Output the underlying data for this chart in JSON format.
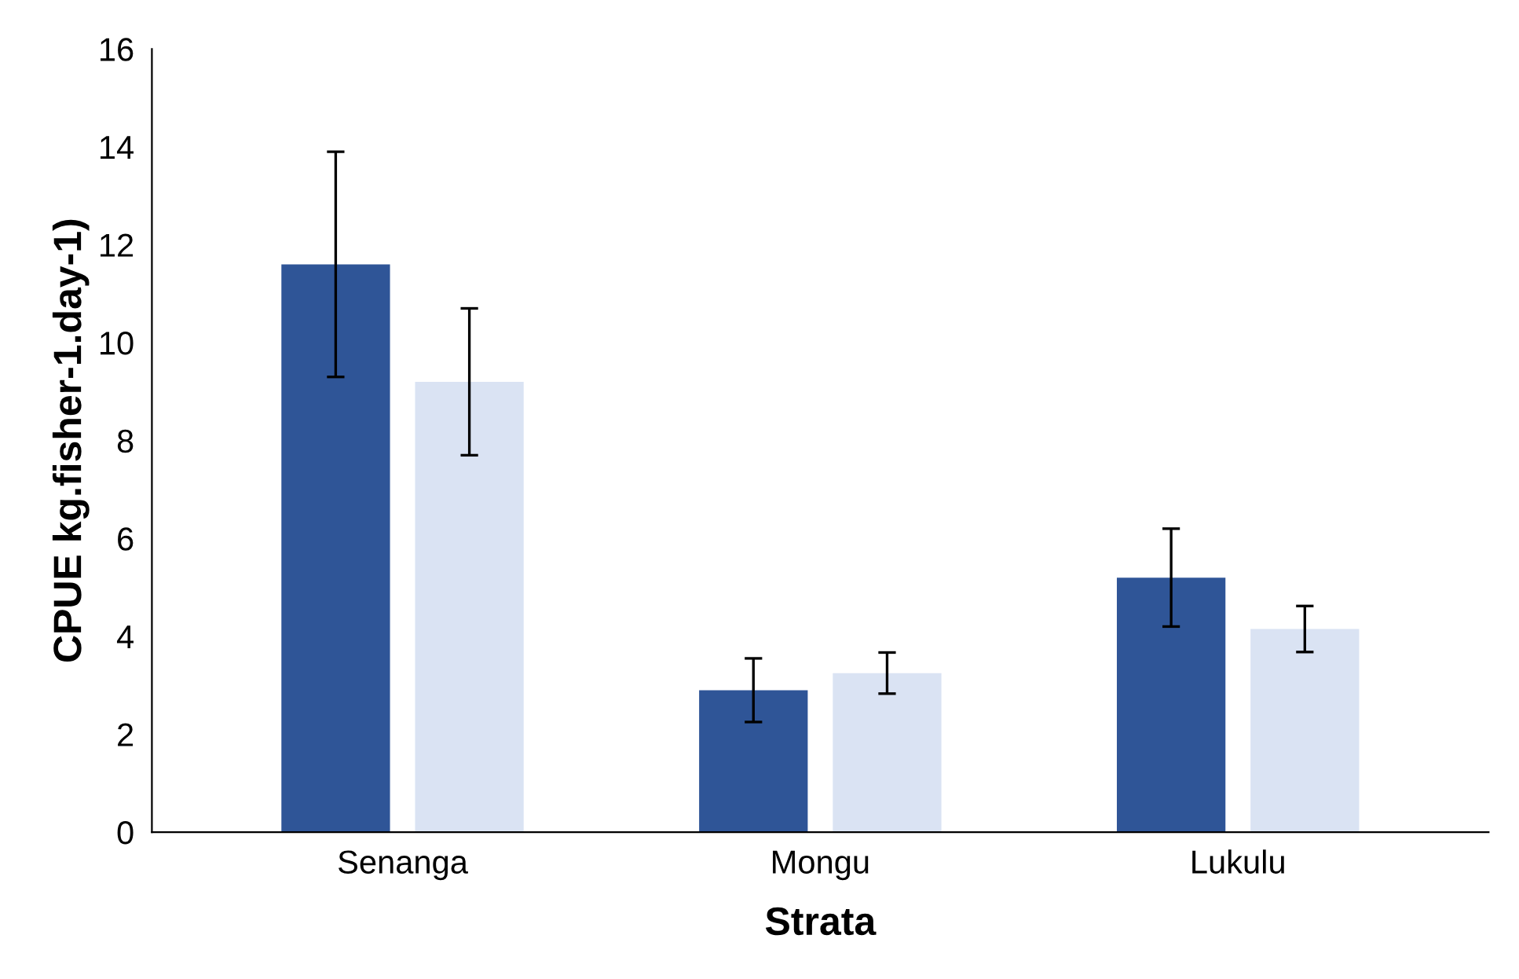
{
  "chart_data": {
    "type": "bar",
    "xlabel": "Strata",
    "ylabel": "CPUE kg.fisher-1.day-1)",
    "categories": [
      "Senanga",
      "Mongu",
      "Lukulu"
    ],
    "series": [
      {
        "color": "#2f5597",
        "values": [
          11.6,
          2.9,
          5.2
        ],
        "errors": [
          2.3,
          0.65,
          1.0
        ]
      },
      {
        "color": "#dae3f3",
        "values": [
          9.2,
          3.25,
          4.15
        ],
        "errors": [
          1.5,
          0.42,
          0.47
        ]
      }
    ],
    "ylim": [
      0,
      16
    ],
    "yticks": [
      0,
      2,
      4,
      6,
      8,
      10,
      12,
      14,
      16
    ],
    "grid": false,
    "legend": false
  }
}
